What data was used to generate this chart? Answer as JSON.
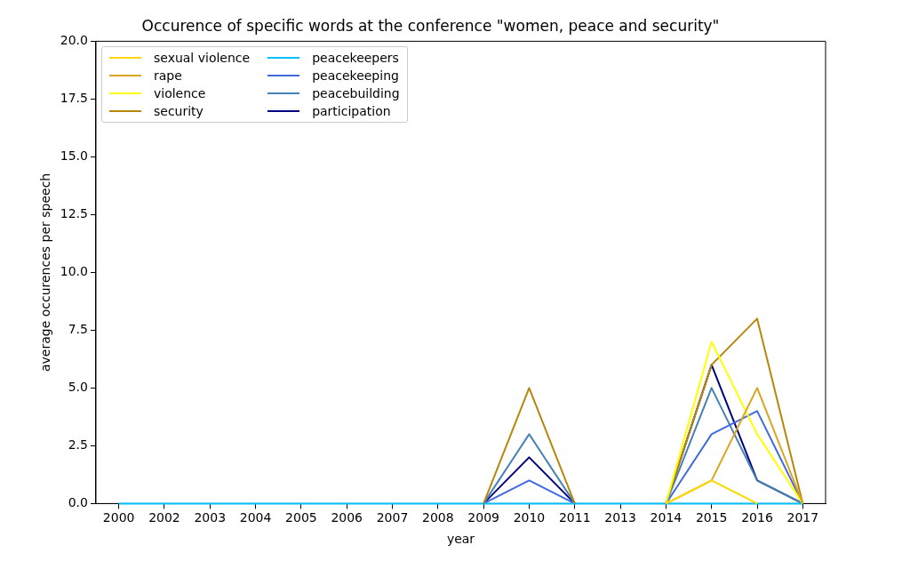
{
  "chart_data": {
    "type": "line",
    "title": "Occurence of specific words at the conference \"women, peace and security\"",
    "xlabel": "year",
    "ylabel": "average occurences per speech",
    "categories": [
      "2000",
      "2002",
      "2003",
      "2004",
      "2005",
      "2006",
      "2007",
      "2008",
      "2009",
      "2010",
      "2011",
      "2013",
      "2014",
      "2015",
      "2016",
      "2017"
    ],
    "series": [
      {
        "name": "sexual violence",
        "color": "#ffd700",
        "values": [
          null,
          null,
          null,
          null,
          null,
          null,
          null,
          null,
          null,
          null,
          null,
          null,
          0,
          1,
          0,
          null
        ]
      },
      {
        "name": "rape",
        "color": "#daa520",
        "values": [
          null,
          null,
          null,
          null,
          null,
          null,
          null,
          null,
          null,
          null,
          null,
          null,
          0,
          1,
          5,
          0
        ]
      },
      {
        "name": "violence",
        "color": "#ffff00",
        "values": [
          null,
          null,
          null,
          null,
          null,
          null,
          null,
          null,
          null,
          null,
          null,
          null,
          0,
          7,
          3,
          0
        ]
      },
      {
        "name": "security",
        "color": "#b8860b",
        "values": [
          null,
          null,
          null,
          null,
          null,
          null,
          null,
          null,
          0,
          5,
          0,
          null,
          0,
          6,
          8,
          0
        ]
      },
      {
        "name": "peacekeepers",
        "color": "#00bfff",
        "values": [
          0,
          0,
          0,
          0,
          0,
          0,
          0,
          0,
          0,
          0,
          0,
          0,
          0,
          0,
          0,
          0
        ]
      },
      {
        "name": "peacekeeping",
        "color": "#4169e1",
        "values": [
          null,
          null,
          null,
          null,
          null,
          null,
          null,
          null,
          0,
          1,
          0,
          null,
          0,
          3,
          4,
          0
        ]
      },
      {
        "name": "peacebuilding",
        "color": "#4682b4",
        "values": [
          null,
          null,
          null,
          null,
          null,
          null,
          null,
          null,
          0,
          3,
          0,
          null,
          0,
          5,
          1,
          0
        ]
      },
      {
        "name": "participation",
        "color": "#000080",
        "values": [
          null,
          null,
          null,
          null,
          null,
          null,
          null,
          null,
          0,
          2,
          0,
          null,
          0,
          6,
          1,
          0
        ]
      }
    ],
    "ylim": [
      0,
      20
    ],
    "yticks": [
      {
        "value": 0,
        "label": "0.0"
      },
      {
        "value": 2.5,
        "label": "2.5"
      },
      {
        "value": 5,
        "label": "5.0"
      },
      {
        "value": 7.5,
        "label": "7.5"
      },
      {
        "value": 10,
        "label": "10.0"
      },
      {
        "value": 12.5,
        "label": "12.5"
      },
      {
        "value": 15,
        "label": "15.0"
      },
      {
        "value": 17.5,
        "label": "17.5"
      },
      {
        "value": 20,
        "label": "20.0"
      }
    ],
    "legend": "top left",
    "marker": "none",
    "line_style": "solid"
  }
}
